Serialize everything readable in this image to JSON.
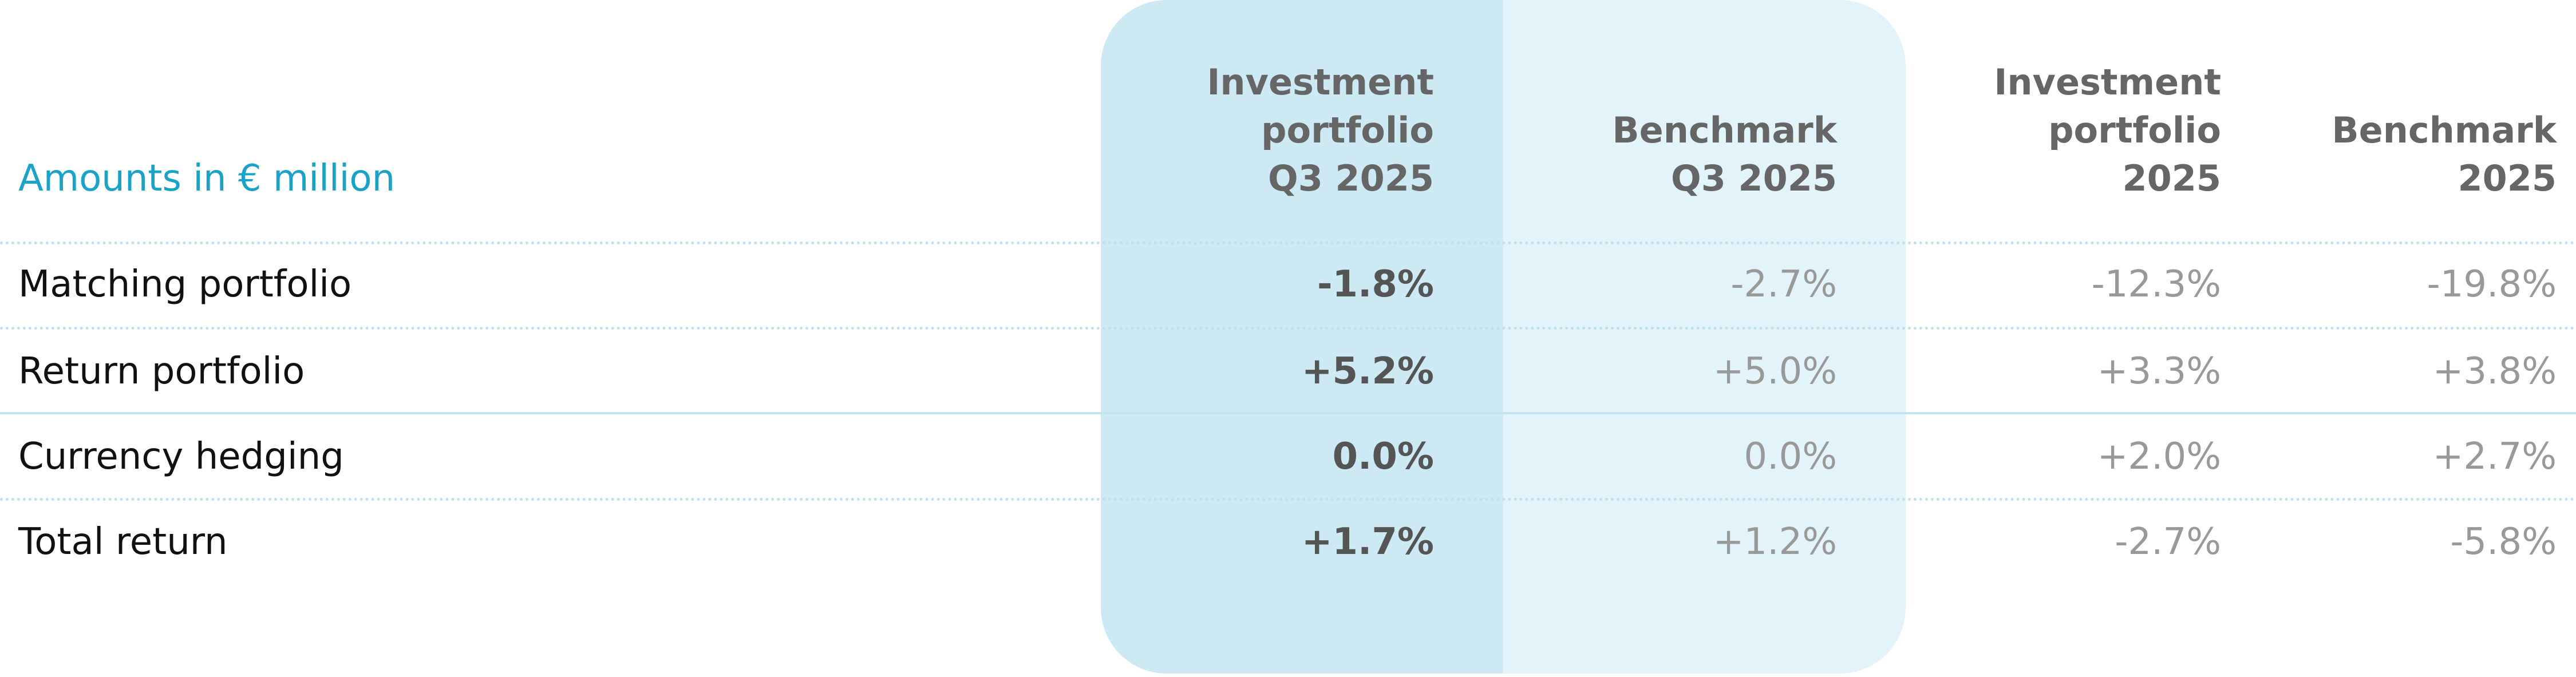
{
  "table": {
    "caption": "Amounts in € million",
    "columns": [
      [
        "Investment",
        "portfolio",
        "Q3 2025"
      ],
      [
        "Benchmark",
        "Q3 2025"
      ],
      [
        "Investment",
        "portfolio",
        "2025"
      ],
      [
        "Benchmark",
        "2025"
      ]
    ],
    "rows": [
      [
        "Matching portfolio",
        "-1.8%",
        "-2.7%",
        "-12.3%",
        "-19.8%"
      ],
      [
        "Return portfolio",
        "+5.2%",
        "+5.0%",
        "+3.3%",
        "+3.8%"
      ],
      [
        "Currency hedging",
        "0.0%",
        "0.0%",
        "+2.0%",
        "+2.7%"
      ],
      [
        "Total return",
        "+1.7%",
        "+1.2%",
        "-2.7%",
        "-5.8%"
      ]
    ]
  }
}
